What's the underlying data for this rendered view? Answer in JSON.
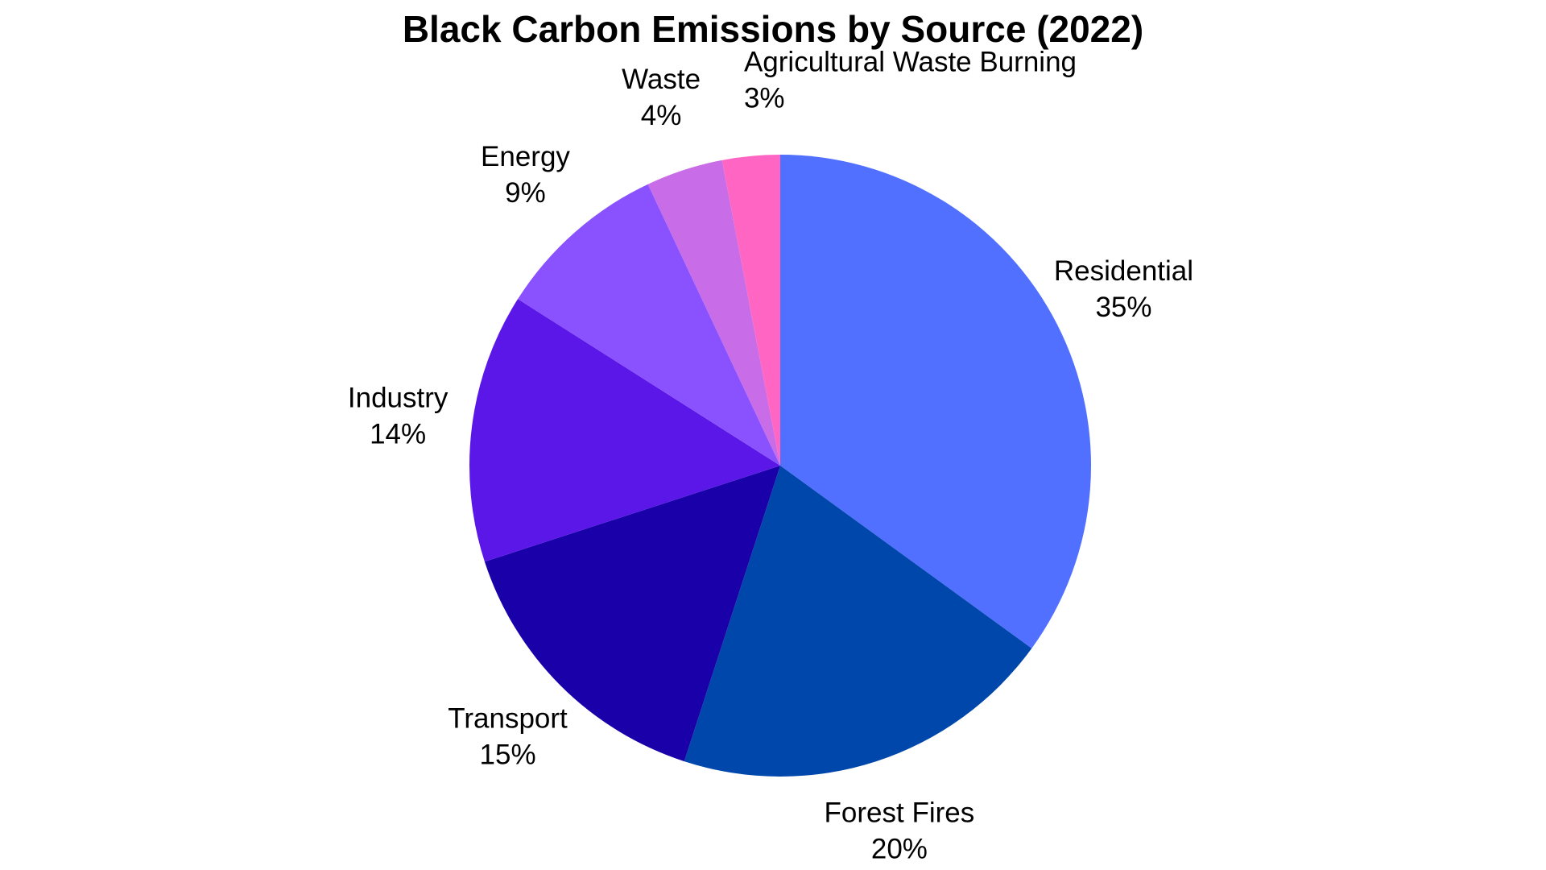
{
  "chart_data": {
    "type": "pie",
    "title": "Black Carbon Emissions by Source (2022)",
    "categories": [
      "Residential",
      "Forest Fires",
      "Transport",
      "Industry",
      "Energy",
      "Waste",
      "Agricultural Waste Burning"
    ],
    "values": [
      35,
      20,
      15,
      14,
      9,
      4,
      3
    ],
    "value_labels": [
      "35%",
      "20%",
      "15%",
      "14%",
      "9%",
      "4%",
      "3%"
    ],
    "colors": [
      "#5170ff",
      "#0047ab",
      "#1a00a8",
      "#5b17e8",
      "#8a52ff",
      "#c86ce8",
      "#ff66c4"
    ]
  }
}
